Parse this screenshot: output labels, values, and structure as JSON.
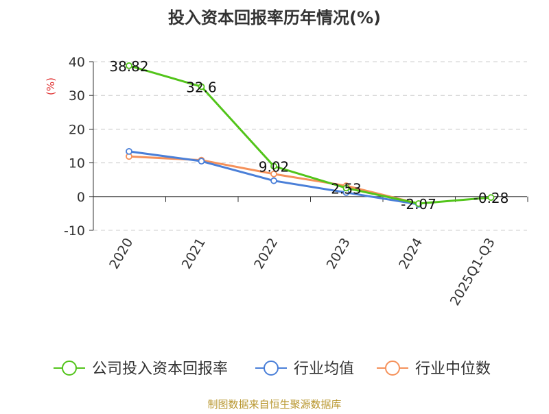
{
  "chart_data": {
    "type": "line",
    "title": "投入资本回报率历年情况(%)",
    "ylabel": "(%)",
    "xlabel": "",
    "categories": [
      "2020",
      "2021",
      "2022",
      "2023",
      "2024",
      "2025Q1-Q3"
    ],
    "yticks": [
      "40",
      "30",
      "20",
      "10",
      "0",
      "-10"
    ],
    "ylim": [
      -10,
      40
    ],
    "grid": true,
    "legend_position": "bottom",
    "series": [
      {
        "name": "公司投入资本回报率",
        "color": "#52c41a",
        "values": [
          38.82,
          32.6,
          9.02,
          2.53,
          -2.07,
          -0.28
        ],
        "labels": [
          "38.82",
          "32.6",
          "9.02",
          "2.53",
          "-2.07",
          "-0.28"
        ]
      },
      {
        "name": "行业均值",
        "color": "#4a7fd8",
        "values": [
          13.4,
          10.5,
          4.7,
          1.2,
          -2.3,
          null
        ],
        "labels": []
      },
      {
        "name": "行业中位数",
        "color": "#f5915a",
        "values": [
          11.9,
          10.8,
          6.7,
          3.2,
          -2.1,
          null
        ],
        "labels": []
      }
    ],
    "source": "制图数据来自恒生聚源数据库",
    "title_color": "#333333",
    "ylabel_color": "#e03030",
    "source_color": "#b8962e"
  }
}
